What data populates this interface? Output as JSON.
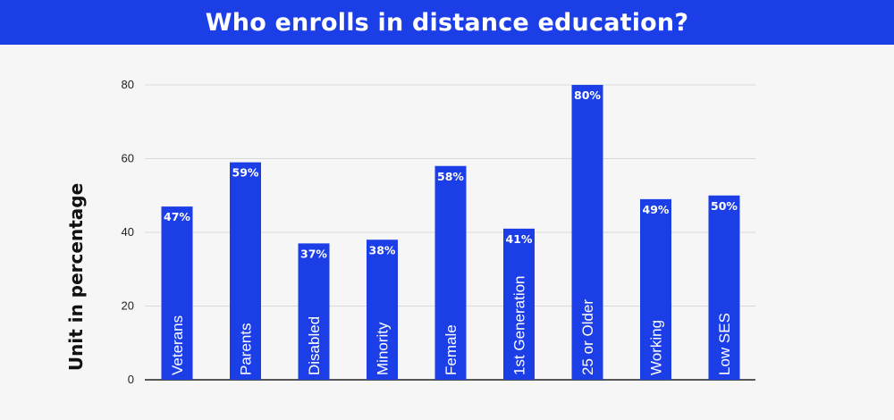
{
  "title": "Who enrolls in distance education?",
  "colors": {
    "header": "#1c3ee6",
    "bar": "#1c3ee6",
    "grid": "#d9d9d9",
    "axis": "#222222"
  },
  "chart_data": {
    "type": "bar",
    "title": "Who enrolls in distance education?",
    "xlabel": "",
    "ylabel": "Unit in percentage",
    "ylim": [
      0,
      80
    ],
    "yticks": [
      0,
      20,
      40,
      60,
      80
    ],
    "grid": true,
    "categories": [
      "Veterans",
      "Parents",
      "Disabled",
      "Minority",
      "Female",
      "1st Generation",
      "25 or Older",
      "Working",
      "Low SES"
    ],
    "values": [
      47,
      59,
      37,
      38,
      58,
      41,
      80,
      49,
      50
    ],
    "value_labels": [
      "47%",
      "59%",
      "37%",
      "38%",
      "58%",
      "41%",
      "80%",
      "49%",
      "50%"
    ]
  }
}
